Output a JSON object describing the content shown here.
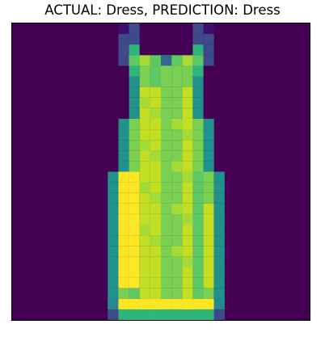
{
  "figure": {
    "title": "ACTUAL: Dress, PREDICTION: Dress"
  },
  "image": {
    "subject": "dress",
    "grid_size": 28,
    "colormap": "viridis",
    "background_color": "#440154"
  },
  "colors": {
    "bg": "#440154",
    "dark_teal": "#23898e",
    "teal": "#21918c",
    "mid_teal": "#2fb47c",
    "green": "#5ec962",
    "light_green": "#7ad151",
    "lime": "#a5db36",
    "yellow_green": "#c2df23",
    "yellow": "#fde725",
    "deep_purple": "#3b0f70",
    "purple_blue": "#3e4989",
    "blue": "#31688e"
  }
}
